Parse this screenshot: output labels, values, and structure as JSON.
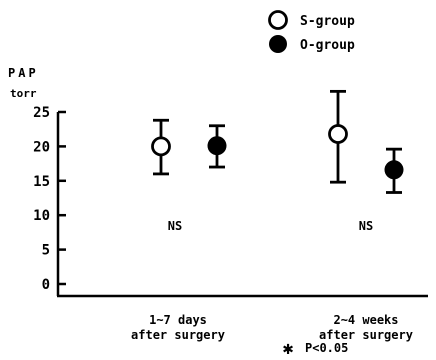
{
  "chart_data": {
    "type": "scatter",
    "ylabel_line1": "PAP",
    "ylabel_line2": "torr",
    "ylim": [
      0,
      25
    ],
    "yticks": [
      0,
      5,
      10,
      15,
      20,
      25
    ],
    "categories": [
      {
        "line1": "1~7 days",
        "line2": "after surgery"
      },
      {
        "line1": "2~4  weeks",
        "line2": "after surgery"
      }
    ],
    "series": [
      {
        "name": "S-group",
        "marker": "open-circle",
        "values": [
          20,
          21.8
        ],
        "err_low": [
          16,
          14.8
        ],
        "err_high": [
          23.8,
          28
        ]
      },
      {
        "name": "O-group",
        "marker": "filled-circle",
        "values": [
          20.1,
          16.6
        ],
        "err_low": [
          17,
          13.3
        ],
        "err_high": [
          23,
          19.6
        ]
      }
    ],
    "annotations": [
      "NS",
      "NS"
    ],
    "footnote": {
      "symbol": "✱",
      "text": "P<0.05"
    },
    "colors": {
      "ink": "#000000",
      "open_fill": "#ffffff"
    }
  }
}
